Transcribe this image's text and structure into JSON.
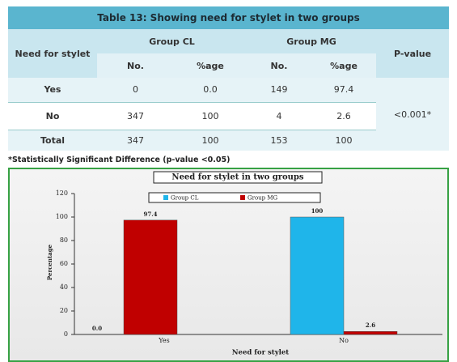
{
  "table": {
    "title": "Table 13: Showing need for stylet in two groups",
    "header": [
      "Need for stylet",
      "Group CL",
      "Group MG",
      "P-value"
    ],
    "subheader": [
      "No.",
      "%age",
      "No.",
      "%age"
    ],
    "rows": [
      [
        "Yes",
        "0",
        "0.0",
        "149",
        "97.4"
      ],
      [
        "No",
        "347",
        "100",
        "4",
        "2.6"
      ],
      [
        "Total",
        "347",
        "100",
        "153",
        "100"
      ]
    ],
    "p_value": "<0.001*",
    "footnote": "*Statistically Significant Difference (p-value <0.05)"
  },
  "chart_data": {
    "type": "bar",
    "title": "Need for stylet in two groups",
    "x_label": "Need for stylet",
    "y_label": "Percentage",
    "categories": [
      "Yes",
      "No"
    ],
    "series": [
      {
        "name": "Group CL",
        "color": "#1fb5ea",
        "values": [
          0,
          100
        ],
        "value_labels": [
          "0.0",
          "100"
        ]
      },
      {
        "name": "Group MG",
        "color": "#c00000",
        "values": [
          97.4,
          2.6
        ]
      }
    ],
    "ylim": [
      0,
      120
    ],
    "yticks": [
      0,
      20,
      40,
      60,
      80,
      100,
      120
    ],
    "grid": false
  }
}
